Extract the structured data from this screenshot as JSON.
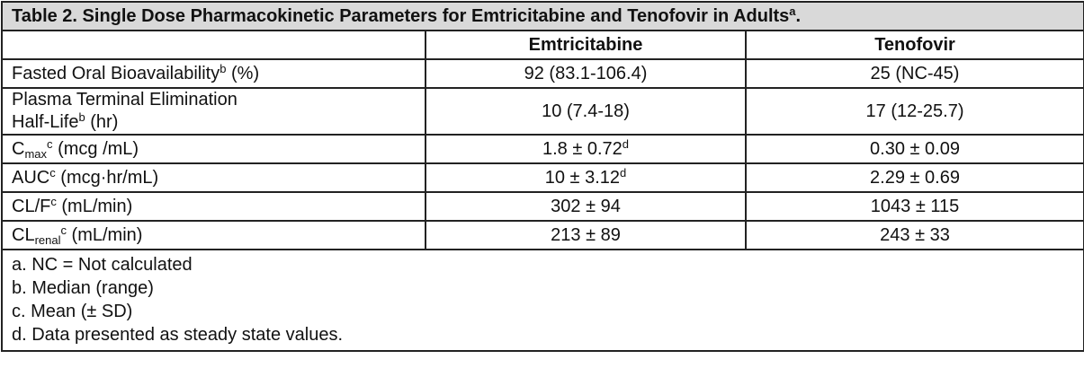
{
  "table": {
    "title": [
      {
        "text": "Table 2. Single Dose Pharmacokinetic Parameters for Emtricitabine and Tenofovir in Adults"
      },
      {
        "text": "a",
        "pos": "sup"
      },
      {
        "text": "."
      }
    ],
    "columns": [
      "Emtricitabine",
      "Tenofovir"
    ],
    "rows": [
      {
        "parameter": [
          [
            {
              "text": "Fasted Oral Bioavailability"
            },
            {
              "text": "b",
              "pos": "sup"
            },
            {
              "text": " (%)"
            }
          ]
        ],
        "values": [
          [
            {
              "text": "92 (83.1-106.4)"
            }
          ],
          [
            {
              "text": "25 (NC-45)"
            }
          ]
        ]
      },
      {
        "parameter": [
          [
            {
              "text": "Plasma Terminal Elimination"
            }
          ],
          [
            {
              "text": "Half-Life"
            },
            {
              "text": "b",
              "pos": "sup"
            },
            {
              "text": " (hr)"
            }
          ]
        ],
        "values": [
          [
            {
              "text": "10 (7.4-18)"
            }
          ],
          [
            {
              "text": "17 (12-25.7)"
            }
          ]
        ]
      },
      {
        "parameter": [
          [
            {
              "text": "C"
            },
            {
              "text": "max",
              "pos": "sub"
            },
            {
              "text": "c",
              "pos": "sup"
            },
            {
              "text": " (mcg /mL)"
            }
          ]
        ],
        "values": [
          [
            {
              "text": "1.8 ± 0.72"
            },
            {
              "text": "d",
              "pos": "sup"
            }
          ],
          [
            {
              "text": "0.30 ± 0.09"
            }
          ]
        ]
      },
      {
        "parameter": [
          [
            {
              "text": "AUC"
            },
            {
              "text": "c",
              "pos": "sup"
            },
            {
              "text": " (mcg·hr/mL)"
            }
          ]
        ],
        "values": [
          [
            {
              "text": "10 ± 3.12"
            },
            {
              "text": "d",
              "pos": "sup"
            }
          ],
          [
            {
              "text": "2.29 ± 0.69"
            }
          ]
        ]
      },
      {
        "parameter": [
          [
            {
              "text": "CL/F"
            },
            {
              "text": "c",
              "pos": "sup"
            },
            {
              "text": " (mL/min)"
            }
          ]
        ],
        "values": [
          [
            {
              "text": "302 ± 94"
            }
          ],
          [
            {
              "text": "1043 ± 115"
            }
          ]
        ]
      },
      {
        "parameter": [
          [
            {
              "text": "CL"
            },
            {
              "text": "renal",
              "pos": "sub"
            },
            {
              "text": "c",
              "pos": "sup"
            },
            {
              "text": " (mL/min)"
            }
          ]
        ],
        "values": [
          [
            {
              "text": "213 ± 89"
            }
          ],
          [
            {
              "text": "243 ± 33"
            }
          ]
        ]
      }
    ],
    "footnotes": [
      "a. NC = Not calculated",
      "b. Median (range)",
      "c. Mean (± SD)",
      "d. Data presented as steady state values."
    ]
  }
}
